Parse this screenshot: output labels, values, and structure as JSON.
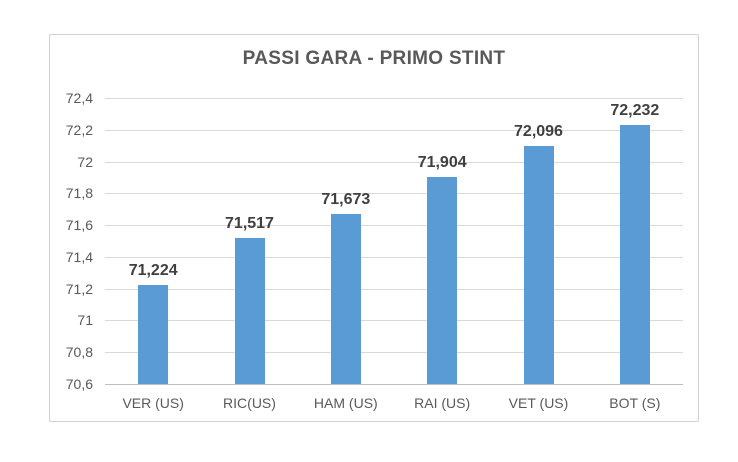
{
  "chart_data": {
    "type": "bar",
    "title": "PASSI GARA - PRIMO STINT",
    "categories": [
      "VER (US)",
      "RIC(US)",
      "HAM (US)",
      "RAI (US)",
      "VET (US)",
      "BOT (S)"
    ],
    "values": [
      71.224,
      71.517,
      71.673,
      71.904,
      72.096,
      72.232
    ],
    "data_labels": [
      "71,224",
      "71,517",
      "71,673",
      "71,904",
      "72,096",
      "72,232"
    ],
    "xlabel": "",
    "ylabel": "",
    "ylim": [
      70.6,
      72.4
    ],
    "ytick_step": 0.2,
    "ytick_labels": [
      "70,6",
      "70,8",
      "71",
      "71,2",
      "71,4",
      "71,6",
      "71,8",
      "72",
      "72,2",
      "72,4"
    ],
    "grid": true,
    "legend": false,
    "colors": {
      "bar": "#5B9BD5",
      "title_text": "#595959",
      "axis_text": "#595959",
      "data_label_text": "#404040",
      "gridline": "#D9D9D9",
      "axis_line": "#BFBFBF",
      "frame_border": "#D2D2D2",
      "background": "#FFFFFF"
    }
  }
}
